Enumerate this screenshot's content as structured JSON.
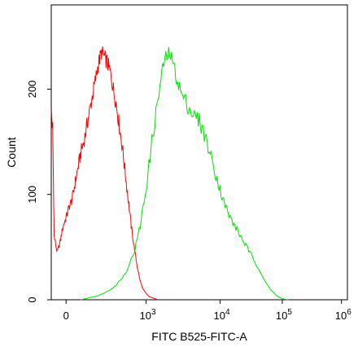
{
  "chart_data": {
    "type": "line",
    "xlabel": "FITC B525-FITC-A",
    "ylabel": "Count",
    "x_scale": "biexponential",
    "ylim": [
      0,
      280
    ],
    "y_ticks": [
      {
        "value": 0,
        "label": "0"
      },
      {
        "value": 100,
        "label": "100"
      },
      {
        "value": 200,
        "label": "200"
      }
    ],
    "x_ticks": [
      {
        "pos": 0.05,
        "label": "0",
        "base": "0",
        "exp": ""
      },
      {
        "pos": 0.32,
        "label": "10^3",
        "base": "10",
        "exp": "3"
      },
      {
        "pos": 0.57,
        "label": "10^4",
        "base": "10",
        "exp": "4"
      },
      {
        "pos": 0.78,
        "label": "10^5",
        "base": "10",
        "exp": "5"
      },
      {
        "pos": 0.98,
        "label": "10^6",
        "base": "10",
        "exp": "6"
      }
    ],
    "series": [
      {
        "color": "#ff0000",
        "points": [
          [
            0.0,
            180
          ],
          [
            0.005,
            160
          ],
          [
            0.01,
            60
          ],
          [
            0.02,
            45
          ],
          [
            0.03,
            55
          ],
          [
            0.04,
            70
          ],
          [
            0.05,
            78
          ],
          [
            0.06,
            88
          ],
          [
            0.07,
            95
          ],
          [
            0.08,
            110
          ],
          [
            0.09,
            125
          ],
          [
            0.1,
            140
          ],
          [
            0.11,
            150
          ],
          [
            0.12,
            165
          ],
          [
            0.13,
            180
          ],
          [
            0.14,
            195
          ],
          [
            0.15,
            210
          ],
          [
            0.16,
            225
          ],
          [
            0.17,
            235
          ],
          [
            0.18,
            230
          ],
          [
            0.19,
            225
          ],
          [
            0.2,
            215
          ],
          [
            0.21,
            200
          ],
          [
            0.22,
            185
          ],
          [
            0.23,
            165
          ],
          [
            0.24,
            145
          ],
          [
            0.25,
            120
          ],
          [
            0.26,
            95
          ],
          [
            0.27,
            70
          ],
          [
            0.28,
            50
          ],
          [
            0.29,
            32
          ],
          [
            0.3,
            18
          ],
          [
            0.31,
            10
          ],
          [
            0.32,
            6
          ],
          [
            0.33,
            3
          ],
          [
            0.34,
            2
          ],
          [
            0.35,
            1
          ],
          [
            0.36,
            0
          ]
        ]
      },
      {
        "color": "#00e000",
        "points": [
          [
            0.1,
            0
          ],
          [
            0.13,
            2
          ],
          [
            0.16,
            4
          ],
          [
            0.19,
            8
          ],
          [
            0.22,
            14
          ],
          [
            0.25,
            25
          ],
          [
            0.28,
            45
          ],
          [
            0.3,
            70
          ],
          [
            0.32,
            105
          ],
          [
            0.34,
            150
          ],
          [
            0.36,
            190
          ],
          [
            0.38,
            225
          ],
          [
            0.4,
            235
          ],
          [
            0.42,
            215
          ],
          [
            0.44,
            195
          ],
          [
            0.46,
            185
          ],
          [
            0.48,
            175
          ],
          [
            0.5,
            170
          ],
          [
            0.52,
            155
          ],
          [
            0.54,
            135
          ],
          [
            0.56,
            115
          ],
          [
            0.58,
            95
          ],
          [
            0.6,
            80
          ],
          [
            0.62,
            70
          ],
          [
            0.64,
            60
          ],
          [
            0.66,
            50
          ],
          [
            0.68,
            40
          ],
          [
            0.7,
            30
          ],
          [
            0.72,
            18
          ],
          [
            0.74,
            10
          ],
          [
            0.76,
            4
          ],
          [
            0.78,
            1
          ],
          [
            0.8,
            0
          ]
        ]
      }
    ]
  }
}
